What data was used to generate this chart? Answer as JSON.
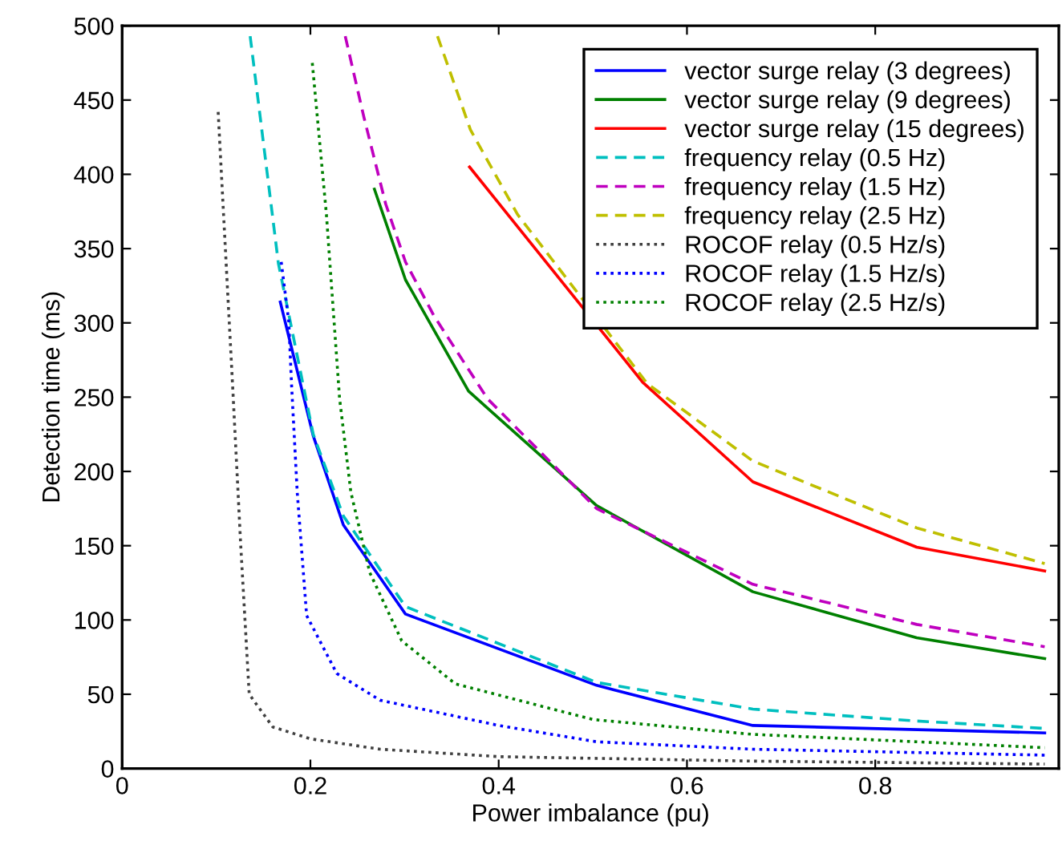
{
  "chart_data": {
    "type": "line",
    "xlabel": "Power imbalance (pu)",
    "ylabel": "Detection time (ms)",
    "xlim": [
      0,
      0.995
    ],
    "ylim": [
      0,
      500
    ],
    "xticks": [
      0,
      0.2,
      0.4,
      0.6,
      0.8
    ],
    "yticks": [
      0,
      50,
      100,
      150,
      200,
      250,
      300,
      350,
      400,
      450,
      500
    ],
    "grid": false,
    "legend": "top right",
    "marker": "none",
    "series": [
      {
        "name": "vector surge relay (3 degrees)",
        "color": "#0000ff",
        "line_style": "solid",
        "x": [
          0.168,
          0.203,
          0.235,
          0.301,
          0.504,
          0.67,
          0.98
        ],
        "values": [
          314,
          224,
          164,
          104,
          56,
          29,
          24
        ]
      },
      {
        "name": "vector surge relay (9 degrees)",
        "color": "#008000",
        "line_style": "solid",
        "x": [
          0.268,
          0.301,
          0.368,
          0.504,
          0.67,
          0.844,
          0.98
        ],
        "values": [
          390,
          329,
          254,
          177,
          119,
          88,
          74
        ]
      },
      {
        "name": "vector surge relay (15 degrees)",
        "color": "#ff0000",
        "line_style": "solid",
        "x": [
          0.369,
          0.553,
          0.67,
          0.844,
          0.98
        ],
        "values": [
          405,
          260,
          193,
          149,
          133
        ]
      },
      {
        "name": "frequency relay (0.5 Hz)",
        "color": "#00bfbf",
        "line_style": "dashed",
        "x": [
          0.136,
          0.166,
          0.203,
          0.235,
          0.301,
          0.504,
          0.67,
          0.844,
          0.98
        ],
        "values": [
          493,
          340,
          225,
          170,
          109,
          58,
          40,
          32,
          27
        ]
      },
      {
        "name": "frequency relay (1.5 Hz)",
        "color": "#bf00bf",
        "line_style": "dashed",
        "x": [
          0.237,
          0.257,
          0.28,
          0.301,
          0.331,
          0.388,
          0.504,
          0.67,
          0.844,
          0.98
        ],
        "values": [
          493,
          438,
          380,
          341,
          305,
          249,
          175,
          124,
          97,
          82
        ]
      },
      {
        "name": "frequency relay (2.5 Hz)",
        "color": "#bfbf00",
        "line_style": "dashed",
        "x": [
          0.335,
          0.37,
          0.42,
          0.558,
          0.67,
          0.844,
          0.98
        ],
        "values": [
          493,
          430,
          373,
          259,
          207,
          162,
          138
        ]
      },
      {
        "name": "ROCOF relay (0.5 Hz/s)",
        "color": "#404040",
        "line_style": "dotted",
        "x": [
          0.102,
          0.118,
          0.126,
          0.135,
          0.16,
          0.2,
          0.274,
          0.4,
          0.67,
          0.98
        ],
        "values": [
          442,
          250,
          150,
          50,
          28,
          20,
          13,
          8,
          5,
          3
        ]
      },
      {
        "name": "ROCOF relay (1.5 Hz/s)",
        "color": "#0000ff",
        "line_style": "dotted",
        "x": [
          0.169,
          0.177,
          0.18,
          0.186,
          0.196,
          0.228,
          0.274,
          0.4,
          0.504,
          0.67,
          0.98
        ],
        "values": [
          341,
          301,
          258,
          186,
          103,
          64,
          46,
          29,
          18,
          13,
          9
        ]
      },
      {
        "name": "ROCOF relay (2.5 Hz/s)",
        "color": "#008000",
        "line_style": "dotted",
        "x": [
          0.202,
          0.217,
          0.231,
          0.243,
          0.263,
          0.297,
          0.354,
          0.5,
          0.67,
          0.844,
          0.98
        ],
        "values": [
          475,
          373,
          249,
          186,
          132,
          86,
          57,
          33,
          23,
          18,
          14
        ]
      }
    ]
  }
}
